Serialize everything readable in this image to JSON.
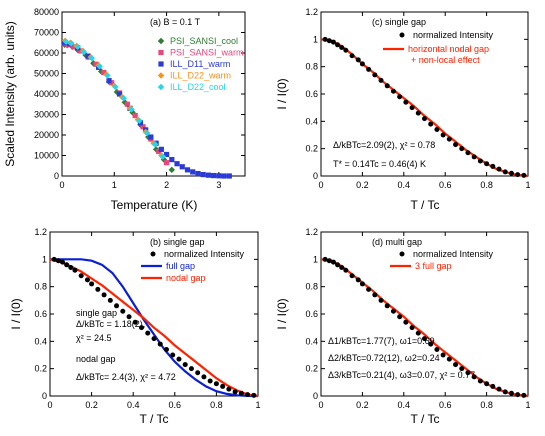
{
  "chart_data": [
    {
      "id": "panel-a",
      "type": "scatter",
      "annotation": "(a) B = 0.1 T",
      "xlabel": "Temperature (K)",
      "ylabel": "Scaled Intensity (arb. units)",
      "xlim": [
        0,
        3.5
      ],
      "ylim": [
        0,
        80000
      ],
      "xticks": [
        "0",
        "1",
        "2",
        "3"
      ],
      "yticks": [
        "0",
        "10000",
        "20000",
        "30000",
        "40000",
        "50000",
        "60000",
        "70000",
        "80000"
      ],
      "series": [
        {
          "name": "PSI_SANSI_cool",
          "color": "#2e7d32",
          "marker": "diamond",
          "x": [
            0.05,
            0.1,
            0.2,
            0.3,
            0.45,
            0.6,
            0.75,
            0.9,
            1.05,
            1.2,
            1.35,
            1.5,
            1.65,
            1.8,
            1.95,
            2.1
          ],
          "y": [
            64000,
            63800,
            63000,
            61500,
            59000,
            55000,
            51000,
            46000,
            41000,
            36000,
            31000,
            25000,
            19000,
            13000,
            8000,
            3000
          ]
        },
        {
          "name": "PSI_SANSI_warm",
          "color": "#e8467c",
          "marker": "square",
          "x": [
            0.05,
            0.12,
            0.22,
            0.35,
            0.5,
            0.65,
            0.8,
            0.95,
            1.1,
            1.25,
            1.4,
            1.55,
            1.7,
            1.85,
            2.0
          ],
          "y": [
            64500,
            64000,
            63000,
            61000,
            58000,
            54500,
            50500,
            45500,
            40500,
            35000,
            29500,
            24000,
            18000,
            12000,
            6500
          ]
        },
        {
          "name": "ILL_D11_warm",
          "color": "#2b3bd6",
          "marker": "square",
          "x": [
            0.05,
            0.15,
            0.3,
            0.5,
            0.7,
            0.9,
            1.1,
            1.3,
            1.5,
            1.6,
            1.7,
            1.8,
            1.9,
            2.0,
            2.1,
            2.2,
            2.3,
            2.4,
            2.5,
            2.6,
            2.7,
            2.8,
            2.9,
            3.0,
            3.1,
            3.2
          ],
          "y": [
            65000,
            64500,
            62500,
            58500,
            53000,
            46500,
            40000,
            33000,
            26000,
            22500,
            19000,
            16000,
            13000,
            10500,
            8000,
            6000,
            4500,
            3000,
            2000,
            1200,
            700,
            400,
            200,
            100,
            0,
            0
          ]
        },
        {
          "name": "ILL_D22_warm",
          "color": "#f7941d",
          "marker": "diamond",
          "x": [
            0.06,
            0.16,
            0.28,
            0.4,
            0.55,
            0.7,
            0.85,
            1.0,
            1.15,
            1.3,
            1.45,
            1.6,
            1.75,
            1.9
          ],
          "y": [
            66000,
            65000,
            63500,
            61000,
            58000,
            54000,
            49500,
            44000,
            38500,
            33000,
            27500,
            21500,
            16000,
            10000
          ]
        },
        {
          "name": "ILL_D22_cool",
          "color": "#27d4ea",
          "marker": "diamond",
          "x": [
            0.08,
            0.18,
            0.3,
            0.42,
            0.57,
            0.72,
            0.87,
            1.02,
            1.18,
            1.33,
            1.48,
            1.63,
            1.78,
            1.93
          ],
          "y": [
            65500,
            64800,
            63000,
            60500,
            57500,
            53500,
            49000,
            43500,
            38000,
            32500,
            27000,
            21000,
            15500,
            9500
          ]
        }
      ]
    },
    {
      "id": "panel-c",
      "type": "scatter",
      "annotation": "(c) single gap",
      "xlabel": "T / Tc",
      "ylabel": "I / I(0)",
      "xlim": [
        0,
        1
      ],
      "ylim": [
        0,
        1.2
      ],
      "xticks": [
        "0",
        "0.2",
        "0.4",
        "0.6",
        "0.8",
        "1"
      ],
      "yticks": [
        "0",
        "0.2",
        "0.4",
        "0.6",
        "0.8",
        "1",
        "1.2"
      ],
      "legend": [
        "normalized Intensity",
        "horizontal nodal gap",
        "+ non-local effect"
      ],
      "notes": [
        "Δ/kBTc=2.09(2), χ² = 0.78",
        "T* = 0.14Tc = 0.46(4) K"
      ],
      "points": {
        "x": [
          0.02,
          0.04,
          0.06,
          0.08,
          0.1,
          0.12,
          0.15,
          0.18,
          0.2,
          0.23,
          0.26,
          0.29,
          0.32,
          0.35,
          0.38,
          0.41,
          0.44,
          0.47,
          0.5,
          0.53,
          0.56,
          0.59,
          0.62,
          0.65,
          0.68,
          0.71,
          0.74,
          0.77,
          0.8,
          0.83,
          0.86,
          0.89,
          0.92,
          0.95,
          0.98
        ],
        "y": [
          1.0,
          0.99,
          0.98,
          0.96,
          0.94,
          0.92,
          0.88,
          0.85,
          0.82,
          0.78,
          0.74,
          0.7,
          0.66,
          0.62,
          0.58,
          0.54,
          0.5,
          0.46,
          0.42,
          0.38,
          0.34,
          0.3,
          0.27,
          0.23,
          0.2,
          0.17,
          0.14,
          0.11,
          0.09,
          0.07,
          0.05,
          0.03,
          0.02,
          0.01,
          0.005
        ]
      },
      "fit": {
        "name": "horizontal nodal gap + non-local effect",
        "color": "#ff2200",
        "x": [
          0,
          0.05,
          0.1,
          0.15,
          0.2,
          0.25,
          0.3,
          0.35,
          0.4,
          0.45,
          0.5,
          0.55,
          0.6,
          0.65,
          0.7,
          0.75,
          0.8,
          0.85,
          0.9,
          0.95,
          1.0
        ],
        "y": [
          1.0,
          0.99,
          0.95,
          0.89,
          0.82,
          0.76,
          0.69,
          0.63,
          0.57,
          0.51,
          0.44,
          0.38,
          0.31,
          0.25,
          0.19,
          0.14,
          0.09,
          0.05,
          0.025,
          0.008,
          0
        ]
      }
    },
    {
      "id": "panel-b",
      "type": "scatter",
      "annotation": "(b) single gap",
      "xlabel": "T / Tc",
      "ylabel": "I / I(0)",
      "xlim": [
        0,
        1
      ],
      "ylim": [
        0,
        1.2
      ],
      "xticks": [
        "0",
        "0.2",
        "0.4",
        "0.6",
        "0.8",
        "1"
      ],
      "yticks": [
        "0",
        "0.2",
        "0.4",
        "0.6",
        "0.8",
        "1",
        "1.2"
      ],
      "legend": [
        "normalized Intensity",
        "full gap",
        "nodal gap"
      ],
      "notes": [
        "single gap",
        "Δ/kBTc = 1.18(2),",
        "χ² = 24.5",
        "nodal gap",
        "Δ/kBTc= 2.4(3), χ² = 4.72"
      ],
      "points": {
        "x": [
          0.02,
          0.04,
          0.06,
          0.08,
          0.1,
          0.12,
          0.15,
          0.18,
          0.2,
          0.23,
          0.26,
          0.29,
          0.32,
          0.35,
          0.38,
          0.41,
          0.44,
          0.47,
          0.5,
          0.53,
          0.56,
          0.59,
          0.62,
          0.65,
          0.68,
          0.71,
          0.74,
          0.77,
          0.8,
          0.83,
          0.86,
          0.89,
          0.92,
          0.95,
          0.98
        ],
        "y": [
          1.0,
          0.99,
          0.98,
          0.96,
          0.94,
          0.92,
          0.88,
          0.85,
          0.82,
          0.78,
          0.74,
          0.7,
          0.66,
          0.62,
          0.58,
          0.54,
          0.5,
          0.46,
          0.42,
          0.38,
          0.34,
          0.3,
          0.27,
          0.23,
          0.2,
          0.17,
          0.14,
          0.11,
          0.09,
          0.07,
          0.05,
          0.03,
          0.02,
          0.01,
          0.005
        ]
      },
      "fits": [
        {
          "name": "full gap",
          "color": "#0a1fd6",
          "x": [
            0,
            0.05,
            0.1,
            0.15,
            0.2,
            0.25,
            0.3,
            0.35,
            0.4,
            0.45,
            0.5,
            0.55,
            0.6,
            0.65,
            0.7,
            0.75,
            0.8,
            0.85,
            0.9,
            0.95,
            1.0
          ],
          "y": [
            1.0,
            1.0,
            1.0,
            1.0,
            0.99,
            0.96,
            0.9,
            0.8,
            0.68,
            0.56,
            0.45,
            0.34,
            0.25,
            0.18,
            0.12,
            0.07,
            0.035,
            0.015,
            0.005,
            0.001,
            0
          ]
        },
        {
          "name": "nodal gap",
          "color": "#ff2200",
          "x": [
            0,
            0.05,
            0.1,
            0.15,
            0.2,
            0.25,
            0.3,
            0.35,
            0.4,
            0.45,
            0.5,
            0.55,
            0.6,
            0.65,
            0.7,
            0.75,
            0.8,
            0.85,
            0.9,
            0.95,
            1.0
          ],
          "y": [
            1.0,
            0.98,
            0.95,
            0.91,
            0.86,
            0.81,
            0.75,
            0.69,
            0.63,
            0.57,
            0.5,
            0.44,
            0.37,
            0.31,
            0.25,
            0.19,
            0.13,
            0.08,
            0.04,
            0.012,
            0
          ]
        }
      ]
    },
    {
      "id": "panel-d",
      "type": "scatter",
      "annotation": "(d) multi gap",
      "xlabel": "T / Tc",
      "ylabel": "I / I(0)",
      "xlim": [
        0,
        1
      ],
      "ylim": [
        0,
        1.2
      ],
      "xticks": [
        "0",
        "0.2",
        "0.4",
        "0.6",
        "0.8",
        "1"
      ],
      "yticks": [
        "0",
        "0.2",
        "0.4",
        "0.6",
        "0.8",
        "1",
        "1.2"
      ],
      "legend": [
        "normalized Intensity",
        "3 full gap"
      ],
      "notes": [
        "Δ1/kBTc=1.77(7), ω1=0.69",
        "Δ2/kBTc=0.72(12), ω2=0.24",
        "Δ3/kBTc=0.21(4), ω3=0.07, χ² = 0.77"
      ],
      "points": {
        "x": [
          0.02,
          0.04,
          0.06,
          0.08,
          0.1,
          0.12,
          0.15,
          0.18,
          0.2,
          0.23,
          0.26,
          0.29,
          0.32,
          0.35,
          0.38,
          0.41,
          0.44,
          0.47,
          0.5,
          0.53,
          0.56,
          0.59,
          0.62,
          0.65,
          0.68,
          0.71,
          0.74,
          0.77,
          0.8,
          0.83,
          0.86,
          0.89,
          0.92,
          0.95,
          0.98
        ],
        "y": [
          1.0,
          0.99,
          0.98,
          0.96,
          0.94,
          0.92,
          0.88,
          0.85,
          0.82,
          0.78,
          0.74,
          0.7,
          0.66,
          0.62,
          0.58,
          0.54,
          0.5,
          0.46,
          0.42,
          0.38,
          0.34,
          0.3,
          0.27,
          0.23,
          0.2,
          0.17,
          0.14,
          0.11,
          0.09,
          0.07,
          0.05,
          0.03,
          0.02,
          0.01,
          0.005
        ]
      },
      "fit": {
        "name": "3 full gap",
        "color": "#ff2200",
        "x": [
          0,
          0.05,
          0.1,
          0.15,
          0.2,
          0.25,
          0.3,
          0.35,
          0.4,
          0.45,
          0.5,
          0.55,
          0.6,
          0.65,
          0.7,
          0.75,
          0.8,
          0.85,
          0.9,
          0.95,
          1.0
        ],
        "y": [
          1.0,
          0.99,
          0.95,
          0.89,
          0.83,
          0.77,
          0.7,
          0.64,
          0.58,
          0.51,
          0.45,
          0.38,
          0.32,
          0.26,
          0.2,
          0.14,
          0.09,
          0.05,
          0.025,
          0.008,
          0
        ]
      }
    }
  ]
}
